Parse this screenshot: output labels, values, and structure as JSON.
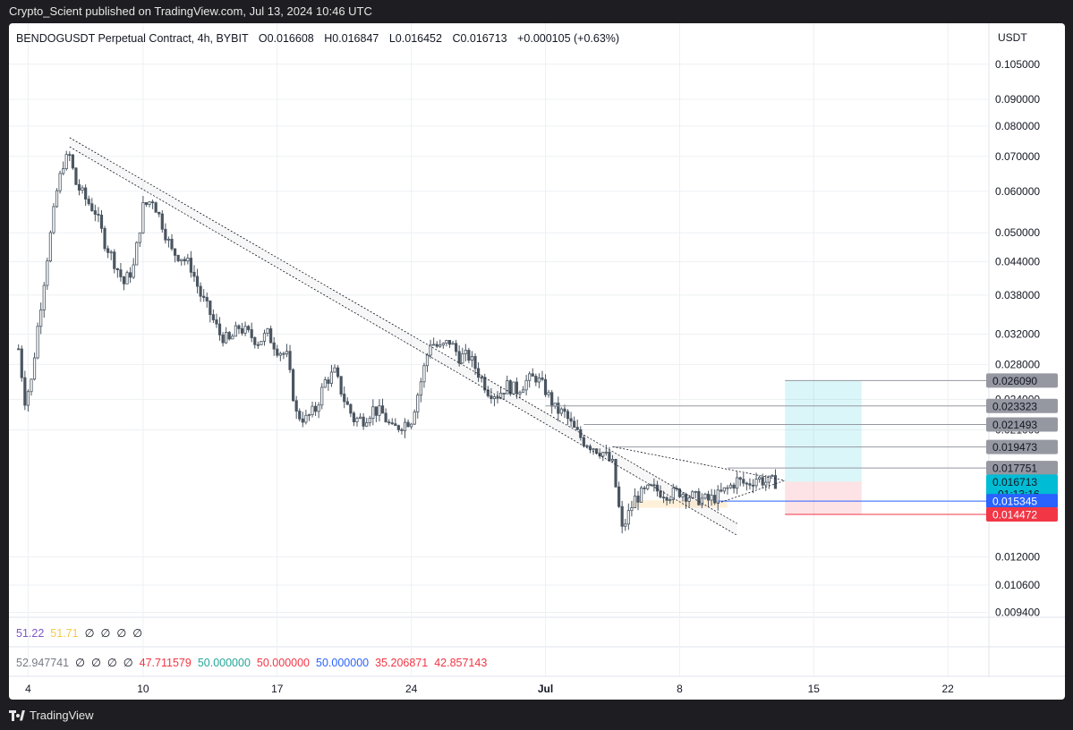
{
  "header": {
    "publisher_line": "Crypto_Scient published on TradingView.com, Jul 13, 2024 10:46 UTC"
  },
  "legend": {
    "symbol": "BENDOGUSDT Perpetual Contract, 4h, BYBIT",
    "open": "O0.016608",
    "high": "H0.016847",
    "low": "L0.016452",
    "close": "C0.016713",
    "change": "+0.000105 (+0.63%)"
  },
  "colors": {
    "up": "#26a69a",
    "candle_body": "#4a5560",
    "grid": "#eef0f3",
    "line_gray": "#9598a1",
    "blue": "#2962ff",
    "red": "#f23645",
    "teal_label": "#00bcd4"
  },
  "indicators": {
    "row1": [
      {
        "text": "51.22",
        "color": "#7e57c2"
      },
      {
        "text": "51.71",
        "color": "#f7c948"
      },
      {
        "text": "∅",
        "color": "#131722"
      },
      {
        "text": "∅",
        "color": "#131722"
      },
      {
        "text": "∅",
        "color": "#131722"
      },
      {
        "text": "∅",
        "color": "#131722"
      }
    ],
    "row2": [
      {
        "text": "52.947741",
        "color": "#787b86"
      },
      {
        "text": "∅",
        "color": "#131722"
      },
      {
        "text": "∅",
        "color": "#131722"
      },
      {
        "text": "∅",
        "color": "#131722"
      },
      {
        "text": "∅",
        "color": "#131722"
      },
      {
        "text": "47.711579",
        "color": "#f23645"
      },
      {
        "text": "50.000000",
        "color": "#26a69a"
      },
      {
        "text": "50.000000",
        "color": "#f23645"
      },
      {
        "text": "50.000000",
        "color": "#2962ff"
      },
      {
        "text": "35.206871",
        "color": "#f23645"
      },
      {
        "text": "42.857143",
        "color": "#f23645"
      }
    ]
  },
  "footer": {
    "brand": "TradingView"
  },
  "chart_data": {
    "type": "candlestick",
    "symbol": "BENDOGUSDT Perpetual Contract",
    "timeframe": "4h",
    "exchange": "BYBIT",
    "currency": "USDT",
    "y_scale": "log",
    "ylim": [
      0.0092,
      0.11
    ],
    "xlim": [
      "2024-06-03",
      "2024-07-24"
    ],
    "y_ticks": [
      "0.105000",
      "0.090000",
      "0.080000",
      "0.070000",
      "0.060000",
      "0.050000",
      "0.044000",
      "0.038000",
      "0.032000",
      "0.028000",
      "0.024000",
      "0.021000",
      "0.012000",
      "0.010600",
      "0.009400"
    ],
    "y_tick_values": [
      0.105,
      0.09,
      0.08,
      0.07,
      0.06,
      0.05,
      0.044,
      0.038,
      0.032,
      0.028,
      0.024,
      0.021,
      0.012,
      0.0106,
      0.0094
    ],
    "x_ticks": [
      {
        "label": "4",
        "date": "2024-06-04"
      },
      {
        "label": "10",
        "date": "2024-06-10"
      },
      {
        "label": "17",
        "date": "2024-06-17"
      },
      {
        "label": "24",
        "date": "2024-06-24"
      },
      {
        "label": "Jul",
        "date": "2024-07-01"
      },
      {
        "label": "8",
        "date": "2024-07-08"
      },
      {
        "label": "15",
        "date": "2024-07-15"
      },
      {
        "label": "22",
        "date": "2024-07-22"
      }
    ],
    "price_path": [
      [
        "2024-06-03T12:00",
        0.03
      ],
      [
        "2024-06-03T20:00",
        0.024
      ],
      [
        "2024-06-04T04:00",
        0.026
      ],
      [
        "2024-06-04T12:00",
        0.033
      ],
      [
        "2024-06-05T00:00",
        0.045
      ],
      [
        "2024-06-05T12:00",
        0.06
      ],
      [
        "2024-06-05T20:00",
        0.068
      ],
      [
        "2024-06-06T04:00",
        0.07
      ],
      [
        "2024-06-06T12:00",
        0.062
      ],
      [
        "2024-06-07T00:00",
        0.058
      ],
      [
        "2024-06-07T12:00",
        0.055
      ],
      [
        "2024-06-08T00:00",
        0.048
      ],
      [
        "2024-06-08T12:00",
        0.044
      ],
      [
        "2024-06-09T00:00",
        0.04
      ],
      [
        "2024-06-09T12:00",
        0.043
      ],
      [
        "2024-06-10T00:00",
        0.056
      ],
      [
        "2024-06-10T12:00",
        0.058
      ],
      [
        "2024-06-11T00:00",
        0.052
      ],
      [
        "2024-06-11T12:00",
        0.046
      ],
      [
        "2024-06-12T00:00",
        0.045
      ],
      [
        "2024-06-12T12:00",
        0.043
      ],
      [
        "2024-06-13T00:00",
        0.038
      ],
      [
        "2024-06-13T12:00",
        0.035
      ],
      [
        "2024-06-14T00:00",
        0.032
      ],
      [
        "2024-06-14T12:00",
        0.031
      ],
      [
        "2024-06-15T00:00",
        0.033
      ],
      [
        "2024-06-15T12:00",
        0.032
      ],
      [
        "2024-06-16T00:00",
        0.031
      ],
      [
        "2024-06-16T12:00",
        0.032
      ],
      [
        "2024-06-17T00:00",
        0.03
      ],
      [
        "2024-06-17T12:00",
        0.029
      ],
      [
        "2024-06-18T00:00",
        0.0225
      ],
      [
        "2024-06-18T12:00",
        0.022
      ],
      [
        "2024-06-19T00:00",
        0.023
      ],
      [
        "2024-06-19T12:00",
        0.026
      ],
      [
        "2024-06-20T00:00",
        0.027
      ],
      [
        "2024-06-20T12:00",
        0.024
      ],
      [
        "2024-06-21T00:00",
        0.022
      ],
      [
        "2024-06-21T12:00",
        0.022
      ],
      [
        "2024-06-22T00:00",
        0.023
      ],
      [
        "2024-06-22T12:00",
        0.0225
      ],
      [
        "2024-06-23T00:00",
        0.021
      ],
      [
        "2024-06-23T12:00",
        0.0215
      ],
      [
        "2024-06-24T00:00",
        0.022
      ],
      [
        "2024-06-24T12:00",
        0.026
      ],
      [
        "2024-06-25T00:00",
        0.031
      ],
      [
        "2024-06-25T12:00",
        0.03
      ],
      [
        "2024-06-26T00:00",
        0.031
      ],
      [
        "2024-06-26T12:00",
        0.029
      ],
      [
        "2024-06-27T00:00",
        0.029
      ],
      [
        "2024-06-27T12:00",
        0.027
      ],
      [
        "2024-06-28T00:00",
        0.025
      ],
      [
        "2024-06-28T12:00",
        0.0245
      ],
      [
        "2024-06-29T00:00",
        0.0255
      ],
      [
        "2024-06-29T12:00",
        0.025
      ],
      [
        "2024-06-30T00:00",
        0.026
      ],
      [
        "2024-06-30T12:00",
        0.0265
      ],
      [
        "2024-07-01T00:00",
        0.025
      ],
      [
        "2024-07-01T12:00",
        0.023
      ],
      [
        "2024-07-02T00:00",
        0.0225
      ],
      [
        "2024-07-02T12:00",
        0.021
      ],
      [
        "2024-07-03T00:00",
        0.02
      ],
      [
        "2024-07-03T12:00",
        0.0195
      ],
      [
        "2024-07-04T00:00",
        0.019
      ],
      [
        "2024-07-04T12:00",
        0.018
      ],
      [
        "2024-07-05T00:00",
        0.0135
      ],
      [
        "2024-07-05T08:00",
        0.0145
      ],
      [
        "2024-07-05T16:00",
        0.0155
      ],
      [
        "2024-07-06T00:00",
        0.0158
      ],
      [
        "2024-07-06T12:00",
        0.0162
      ],
      [
        "2024-07-07T00:00",
        0.016
      ],
      [
        "2024-07-07T12:00",
        0.0158
      ],
      [
        "2024-07-08T00:00",
        0.016
      ],
      [
        "2024-07-08T12:00",
        0.0157
      ],
      [
        "2024-07-09T00:00",
        0.0155
      ],
      [
        "2024-07-09T12:00",
        0.0154
      ],
      [
        "2024-07-10T00:00",
        0.0157
      ],
      [
        "2024-07-10T12:00",
        0.0162
      ],
      [
        "2024-07-11T00:00",
        0.0168
      ],
      [
        "2024-07-11T12:00",
        0.0165
      ],
      [
        "2024-07-12T00:00",
        0.017
      ],
      [
        "2024-07-12T12:00",
        0.0167
      ],
      [
        "2024-07-13T00:00",
        0.0167
      ]
    ],
    "last_price": 0.016713,
    "countdown": "01:13:16",
    "horizontal_levels": [
      {
        "price": 0.02609,
        "label": "0.026090",
        "color": "#9598a1"
      },
      {
        "price": 0.023323,
        "label": "0.023323",
        "color": "#9598a1"
      },
      {
        "price": 0.021493,
        "label": "0.021493",
        "color": "#9598a1"
      },
      {
        "price": 0.019473,
        "label": "0.019473",
        "color": "#9598a1"
      },
      {
        "price": 0.017751,
        "label": "0.017751",
        "color": "#9598a1"
      },
      {
        "price": 0.015345,
        "label": "0.015345",
        "color": "#2962ff"
      },
      {
        "price": 0.014472,
        "label": "0.014472",
        "color": "#f23645"
      }
    ],
    "trendline_upper": {
      "from": [
        "2024-06-06T04:00",
        0.076
      ],
      "to": [
        "2024-07-11T00:00",
        0.0139
      ]
    },
    "trendline_lower": {
      "from": [
        "2024-06-06T04:00",
        0.073
      ],
      "to": [
        "2024-07-11T00:00",
        0.0132
      ]
    },
    "triangle_upper": {
      "from": [
        "2024-07-04T12:00",
        0.0195
      ],
      "to": [
        "2024-07-13T12:00",
        0.0168
      ]
    },
    "triangle_lower": {
      "from": [
        "2024-07-10T00:00",
        0.0152
      ],
      "to": [
        "2024-07-13T12:00",
        0.0168
      ]
    },
    "support_zone": {
      "from": "2024-07-05T12:00",
      "to": "2024-07-10T12:00",
      "low": 0.0149,
      "high": 0.0154
    },
    "position": {
      "from": "2024-07-13T12:00",
      "to": "2024-07-17T12:00",
      "entry": 0.015345,
      "target": 0.02609,
      "stop": 0.014472,
      "last": 0.016713
    }
  }
}
